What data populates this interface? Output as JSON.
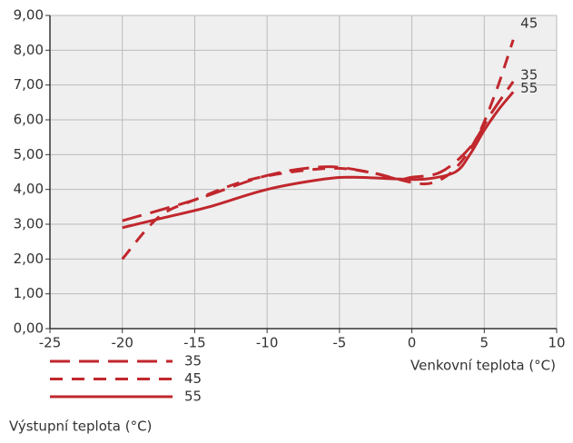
{
  "chart_data": {
    "type": "line",
    "xlabel": "Venkovní teplota (°C)",
    "legend_title": "Výstupní teplota (°C)",
    "xlim": [
      -25,
      10
    ],
    "xticks": [
      -25,
      -20,
      -15,
      -10,
      -5,
      0,
      5,
      10
    ],
    "ylim": [
      0,
      9
    ],
    "yticks": [
      {
        "value": 0,
        "label": "0,00"
      },
      {
        "value": 1,
        "label": "1,00"
      },
      {
        "value": 2,
        "label": "2,00"
      },
      {
        "value": 3,
        "label": "3,00"
      },
      {
        "value": 4,
        "label": "4,00"
      },
      {
        "value": 5,
        "label": "5,00"
      },
      {
        "value": 6,
        "label": "6,00"
      },
      {
        "value": 7,
        "label": "7,00"
      },
      {
        "value": 8,
        "label": "8,00"
      },
      {
        "value": 9,
        "label": "9,00"
      }
    ],
    "grid": true,
    "series": [
      {
        "name": "35",
        "color": "#c1272d",
        "dash": "long",
        "x": [
          -20,
          -15,
          -10,
          -6,
          -3,
          -1,
          0,
          2,
          4,
          5.5,
          7
        ],
        "values": [
          3.1,
          3.7,
          4.4,
          4.65,
          4.5,
          4.3,
          4.35,
          4.5,
          5.2,
          6.2,
          7.1
        ]
      },
      {
        "name": "45",
        "color": "#c1272d",
        "dash": "medium",
        "x": [
          -20,
          -17.5,
          -15,
          -11,
          -6,
          -3,
          0,
          1.5,
          3,
          4.5,
          5.8,
          7
        ],
        "values": [
          2.0,
          3.2,
          3.7,
          4.3,
          4.6,
          4.5,
          4.2,
          4.2,
          4.6,
          5.5,
          6.8,
          8.3
        ]
      },
      {
        "name": "55",
        "color": "#c1272d",
        "dash": "solid",
        "x": [
          -20,
          -17,
          -14,
          -10,
          -6,
          -4,
          -1,
          1,
          3,
          4,
          5,
          6,
          7
        ],
        "values": [
          2.9,
          3.2,
          3.5,
          4.0,
          4.3,
          4.35,
          4.3,
          4.3,
          4.5,
          5.0,
          5.7,
          6.3,
          6.8
        ]
      }
    ]
  }
}
